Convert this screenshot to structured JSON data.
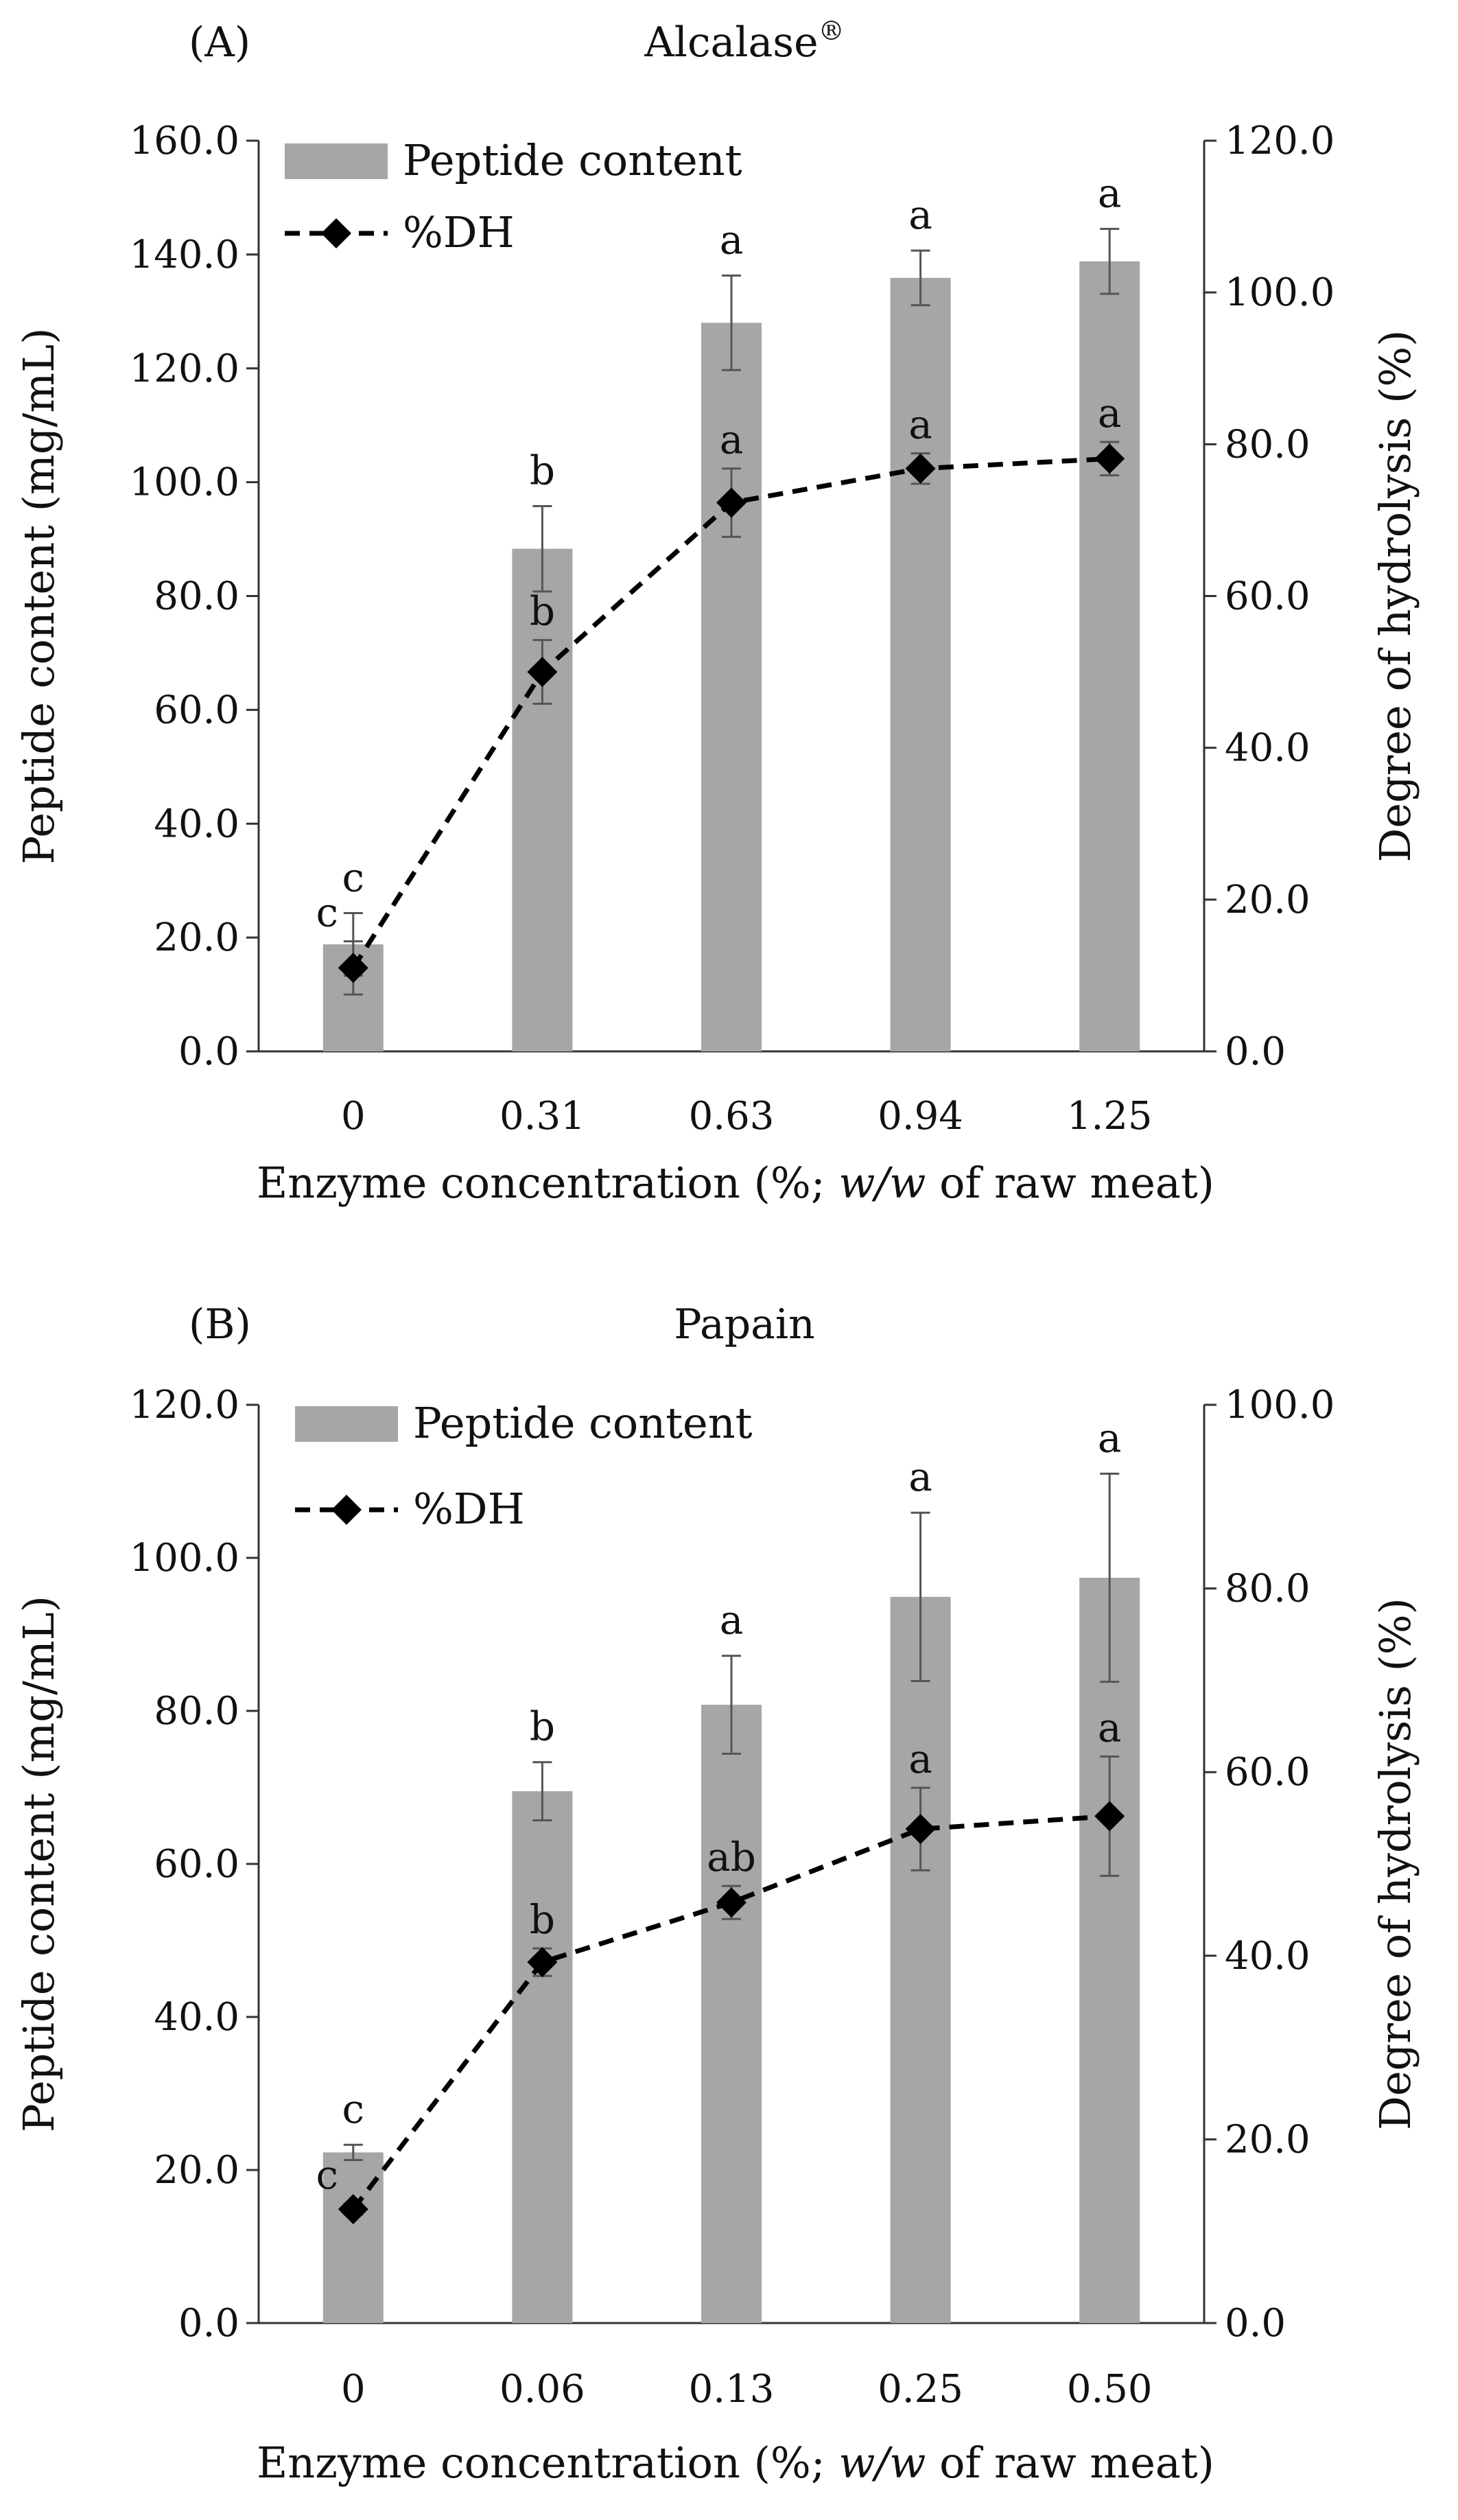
{
  "figure": {
    "panels": [
      {
        "id": "A",
        "letter": "(A)",
        "title": "Alcalase",
        "title_superscript": "®",
        "x_axis_label_prefix": "Enzyme concentration (%; ",
        "x_axis_label_italic": "w/w",
        "x_axis_label_suffix": " of raw meat)",
        "legend": {
          "bar_label": "Peptide content",
          "line_label": "%DH"
        }
      },
      {
        "id": "B",
        "letter": "(B)",
        "title": "Papain",
        "title_superscript": "",
        "x_axis_label_prefix": "Enzyme concentration (%; ",
        "x_axis_label_italic": "w/w",
        "x_axis_label_suffix": " of raw meat)",
        "legend": {
          "bar_label": "Peptide content",
          "line_label": "%DH"
        }
      }
    ]
  },
  "chart_data": [
    {
      "type": "bar",
      "title": "Alcalase®",
      "xlabel": "Enzyme concentration (%; w/w of raw meat)",
      "ylabel": "Peptide content (mg/mL)",
      "y2label": "Degree of hydrolysis (%)",
      "categories": [
        "0",
        "0.31",
        "0.63",
        "0.94",
        "1.25"
      ],
      "ylim": [
        0,
        160
      ],
      "y_ticks": [
        0,
        20,
        40,
        60,
        80,
        100,
        120,
        140,
        160
      ],
      "y_tick_labels": [
        "0.0",
        "20.0",
        "40.0",
        "60.0",
        "80.0",
        "100.0",
        "120.0",
        "140.0",
        "160.0"
      ],
      "y2lim": [
        0,
        120
      ],
      "y2_ticks": [
        0,
        20,
        40,
        60,
        80,
        100,
        120
      ],
      "y2_tick_labels": [
        "0.0",
        "20.0",
        "40.0",
        "60.0",
        "80.0",
        "100.0",
        "120.0"
      ],
      "legend_position": "top-left",
      "series": [
        {
          "name": "Peptide content",
          "kind": "bar",
          "axis": "left",
          "color": "#a6a6a6",
          "values": [
            18.8,
            88.3,
            128.0,
            135.9,
            138.8
          ],
          "errors": [
            5.5,
            7.5,
            8.3,
            4.8,
            5.7
          ],
          "significance": [
            "c",
            "b",
            "a",
            "a",
            "a"
          ]
        },
        {
          "name": "%DH",
          "kind": "line",
          "axis": "right",
          "color": "#000000",
          "values": [
            11.0,
            50.0,
            72.3,
            76.8,
            78.1
          ],
          "errors": [
            3.5,
            4.2,
            4.5,
            2.0,
            2.2
          ],
          "significance": [
            "c",
            "b",
            "a",
            "a",
            "a"
          ]
        }
      ]
    },
    {
      "type": "bar",
      "title": "Papain",
      "xlabel": "Enzyme concentration (%; w/w of raw meat)",
      "ylabel": "Peptide content (mg/mL)",
      "y2label": "Degree of hydrolysis (%)",
      "categories": [
        "0",
        "0.06",
        "0.13",
        "0.25",
        "0.50"
      ],
      "ylim": [
        0,
        120
      ],
      "y_ticks": [
        0,
        20,
        40,
        60,
        80,
        100,
        120
      ],
      "y_tick_labels": [
        "0.0",
        "20.0",
        "40.0",
        "60.0",
        "80.0",
        "100.0",
        "120.0"
      ],
      "y2lim": [
        0,
        100
      ],
      "y2_ticks": [
        0,
        20,
        40,
        60,
        80,
        100
      ],
      "y2_tick_labels": [
        "0.0",
        "20.0",
        "40.0",
        "60.0",
        "80.0",
        "100.0"
      ],
      "legend_position": "top-left",
      "series": [
        {
          "name": "Peptide content",
          "kind": "bar",
          "axis": "left",
          "color": "#a6a6a6",
          "values": [
            22.3,
            69.5,
            80.8,
            94.9,
            97.4
          ],
          "errors": [
            1.0,
            3.8,
            6.4,
            11.0,
            13.6
          ],
          "significance": [
            "c",
            "b",
            "a",
            "a",
            "a"
          ]
        },
        {
          "name": "%DH",
          "kind": "line",
          "axis": "right",
          "color": "#000000",
          "values": [
            12.4,
            39.3,
            45.8,
            53.8,
            55.2
          ],
          "errors": [
            0.6,
            1.5,
            1.8,
            4.5,
            6.5
          ],
          "significance": [
            "c",
            "b",
            "ab",
            "a",
            "a"
          ]
        }
      ]
    }
  ]
}
